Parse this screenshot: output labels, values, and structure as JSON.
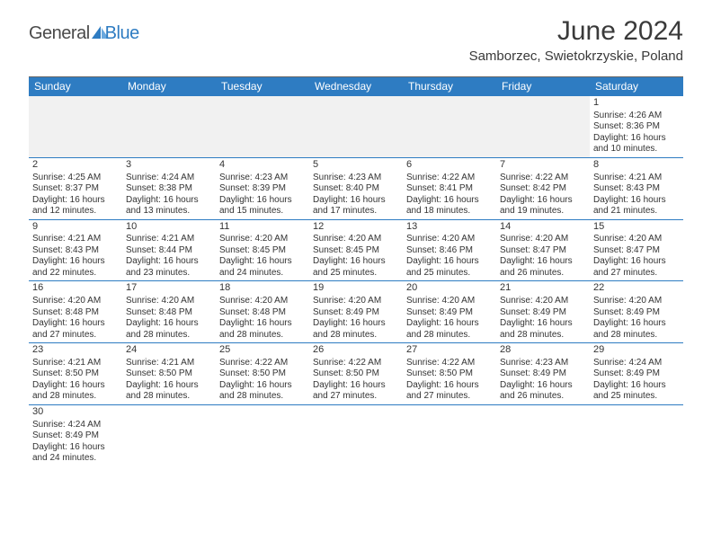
{
  "logo": {
    "part1": "General",
    "part2": "Blue"
  },
  "title": "June 2024",
  "location": "Samborzec, Swietokrzyskie, Poland",
  "colors": {
    "header_bg": "#2e7cc2",
    "header_text": "#ffffff",
    "blank_bg": "#f1f1f1",
    "row_border": "#2e7cc2",
    "text": "#333333"
  },
  "day_headers": [
    "Sunday",
    "Monday",
    "Tuesday",
    "Wednesday",
    "Thursday",
    "Friday",
    "Saturday"
  ],
  "weeks": [
    [
      {
        "blank": true
      },
      {
        "blank": true
      },
      {
        "blank": true
      },
      {
        "blank": true
      },
      {
        "blank": true
      },
      {
        "blank": true
      },
      {
        "day": "1",
        "sunrise": "Sunrise: 4:26 AM",
        "sunset": "Sunset: 8:36 PM",
        "daylight": "Daylight: 16 hours and 10 minutes."
      }
    ],
    [
      {
        "day": "2",
        "sunrise": "Sunrise: 4:25 AM",
        "sunset": "Sunset: 8:37 PM",
        "daylight": "Daylight: 16 hours and 12 minutes."
      },
      {
        "day": "3",
        "sunrise": "Sunrise: 4:24 AM",
        "sunset": "Sunset: 8:38 PM",
        "daylight": "Daylight: 16 hours and 13 minutes."
      },
      {
        "day": "4",
        "sunrise": "Sunrise: 4:23 AM",
        "sunset": "Sunset: 8:39 PM",
        "daylight": "Daylight: 16 hours and 15 minutes."
      },
      {
        "day": "5",
        "sunrise": "Sunrise: 4:23 AM",
        "sunset": "Sunset: 8:40 PM",
        "daylight": "Daylight: 16 hours and 17 minutes."
      },
      {
        "day": "6",
        "sunrise": "Sunrise: 4:22 AM",
        "sunset": "Sunset: 8:41 PM",
        "daylight": "Daylight: 16 hours and 18 minutes."
      },
      {
        "day": "7",
        "sunrise": "Sunrise: 4:22 AM",
        "sunset": "Sunset: 8:42 PM",
        "daylight": "Daylight: 16 hours and 19 minutes."
      },
      {
        "day": "8",
        "sunrise": "Sunrise: 4:21 AM",
        "sunset": "Sunset: 8:43 PM",
        "daylight": "Daylight: 16 hours and 21 minutes."
      }
    ],
    [
      {
        "day": "9",
        "sunrise": "Sunrise: 4:21 AM",
        "sunset": "Sunset: 8:43 PM",
        "daylight": "Daylight: 16 hours and 22 minutes."
      },
      {
        "day": "10",
        "sunrise": "Sunrise: 4:21 AM",
        "sunset": "Sunset: 8:44 PM",
        "daylight": "Daylight: 16 hours and 23 minutes."
      },
      {
        "day": "11",
        "sunrise": "Sunrise: 4:20 AM",
        "sunset": "Sunset: 8:45 PM",
        "daylight": "Daylight: 16 hours and 24 minutes."
      },
      {
        "day": "12",
        "sunrise": "Sunrise: 4:20 AM",
        "sunset": "Sunset: 8:45 PM",
        "daylight": "Daylight: 16 hours and 25 minutes."
      },
      {
        "day": "13",
        "sunrise": "Sunrise: 4:20 AM",
        "sunset": "Sunset: 8:46 PM",
        "daylight": "Daylight: 16 hours and 25 minutes."
      },
      {
        "day": "14",
        "sunrise": "Sunrise: 4:20 AM",
        "sunset": "Sunset: 8:47 PM",
        "daylight": "Daylight: 16 hours and 26 minutes."
      },
      {
        "day": "15",
        "sunrise": "Sunrise: 4:20 AM",
        "sunset": "Sunset: 8:47 PM",
        "daylight": "Daylight: 16 hours and 27 minutes."
      }
    ],
    [
      {
        "day": "16",
        "sunrise": "Sunrise: 4:20 AM",
        "sunset": "Sunset: 8:48 PM",
        "daylight": "Daylight: 16 hours and 27 minutes."
      },
      {
        "day": "17",
        "sunrise": "Sunrise: 4:20 AM",
        "sunset": "Sunset: 8:48 PM",
        "daylight": "Daylight: 16 hours and 28 minutes."
      },
      {
        "day": "18",
        "sunrise": "Sunrise: 4:20 AM",
        "sunset": "Sunset: 8:48 PM",
        "daylight": "Daylight: 16 hours and 28 minutes."
      },
      {
        "day": "19",
        "sunrise": "Sunrise: 4:20 AM",
        "sunset": "Sunset: 8:49 PM",
        "daylight": "Daylight: 16 hours and 28 minutes."
      },
      {
        "day": "20",
        "sunrise": "Sunrise: 4:20 AM",
        "sunset": "Sunset: 8:49 PM",
        "daylight": "Daylight: 16 hours and 28 minutes."
      },
      {
        "day": "21",
        "sunrise": "Sunrise: 4:20 AM",
        "sunset": "Sunset: 8:49 PM",
        "daylight": "Daylight: 16 hours and 28 minutes."
      },
      {
        "day": "22",
        "sunrise": "Sunrise: 4:20 AM",
        "sunset": "Sunset: 8:49 PM",
        "daylight": "Daylight: 16 hours and 28 minutes."
      }
    ],
    [
      {
        "day": "23",
        "sunrise": "Sunrise: 4:21 AM",
        "sunset": "Sunset: 8:50 PM",
        "daylight": "Daylight: 16 hours and 28 minutes."
      },
      {
        "day": "24",
        "sunrise": "Sunrise: 4:21 AM",
        "sunset": "Sunset: 8:50 PM",
        "daylight": "Daylight: 16 hours and 28 minutes."
      },
      {
        "day": "25",
        "sunrise": "Sunrise: 4:22 AM",
        "sunset": "Sunset: 8:50 PM",
        "daylight": "Daylight: 16 hours and 28 minutes."
      },
      {
        "day": "26",
        "sunrise": "Sunrise: 4:22 AM",
        "sunset": "Sunset: 8:50 PM",
        "daylight": "Daylight: 16 hours and 27 minutes."
      },
      {
        "day": "27",
        "sunrise": "Sunrise: 4:22 AM",
        "sunset": "Sunset: 8:50 PM",
        "daylight": "Daylight: 16 hours and 27 minutes."
      },
      {
        "day": "28",
        "sunrise": "Sunrise: 4:23 AM",
        "sunset": "Sunset: 8:49 PM",
        "daylight": "Daylight: 16 hours and 26 minutes."
      },
      {
        "day": "29",
        "sunrise": "Sunrise: 4:24 AM",
        "sunset": "Sunset: 8:49 PM",
        "daylight": "Daylight: 16 hours and 25 minutes."
      }
    ],
    [
      {
        "day": "30",
        "sunrise": "Sunrise: 4:24 AM",
        "sunset": "Sunset: 8:49 PM",
        "daylight": "Daylight: 16 hours and 24 minutes."
      },
      {
        "blank": true
      },
      {
        "blank": true
      },
      {
        "blank": true
      },
      {
        "blank": true
      },
      {
        "blank": true
      },
      {
        "blank": true
      }
    ]
  ]
}
